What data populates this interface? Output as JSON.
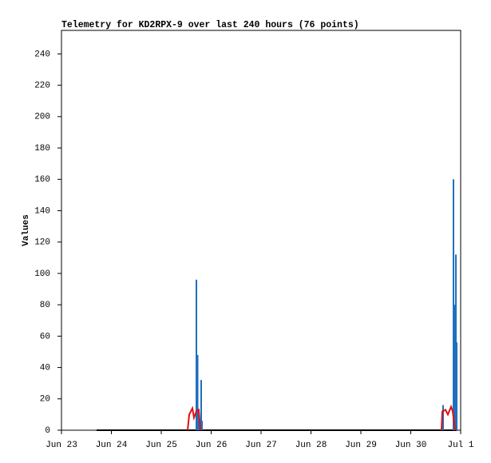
{
  "chart_data": {
    "type": "line",
    "title": "Telemetry for KD2RPX-9 over last 240 hours (76 points)",
    "y_label": "Values",
    "xlim": [
      0,
      8
    ],
    "xticks": [
      {
        "value": 0,
        "label": "Jun 23"
      },
      {
        "value": 1,
        "label": "Jun 24"
      },
      {
        "value": 2,
        "label": "Jun 25"
      },
      {
        "value": 3,
        "label": "Jun 26"
      },
      {
        "value": 4,
        "label": "Jun 27"
      },
      {
        "value": 5,
        "label": "Jun 28"
      },
      {
        "value": 6,
        "label": "Jun 29"
      },
      {
        "value": 7,
        "label": "Jun 30"
      },
      {
        "value": 8,
        "label": "Jul 1"
      }
    ],
    "ylim": [
      0,
      255
    ],
    "yticks": [
      0,
      20,
      40,
      60,
      80,
      100,
      120,
      140,
      160,
      180,
      200,
      220,
      240
    ],
    "series": [
      {
        "color": "#000000",
        "style": "line",
        "x": [
          0.704,
          7.92
        ],
        "values": [
          0,
          0
        ]
      },
      {
        "color": "#1f6fbf",
        "style": "spike",
        "x": [
          2.704,
          2.728,
          2.752,
          2.8,
          2.816,
          7.648,
          7.856,
          7.888,
          7.904,
          7.92
        ],
        "values": [
          96,
          48,
          10,
          32,
          6,
          16,
          160,
          80,
          112,
          56
        ]
      },
      {
        "color": "#e01010",
        "style": "line",
        "x": [
          2.528,
          2.56,
          2.624,
          2.656,
          2.704,
          2.752,
          2.784,
          null,
          7.616,
          7.632,
          7.696,
          7.744,
          7.808,
          7.84,
          7.888
        ],
        "values": [
          0,
          10,
          14,
          8,
          12,
          13,
          0,
          null,
          0,
          12,
          13,
          10,
          15,
          12,
          0
        ]
      }
    ]
  }
}
